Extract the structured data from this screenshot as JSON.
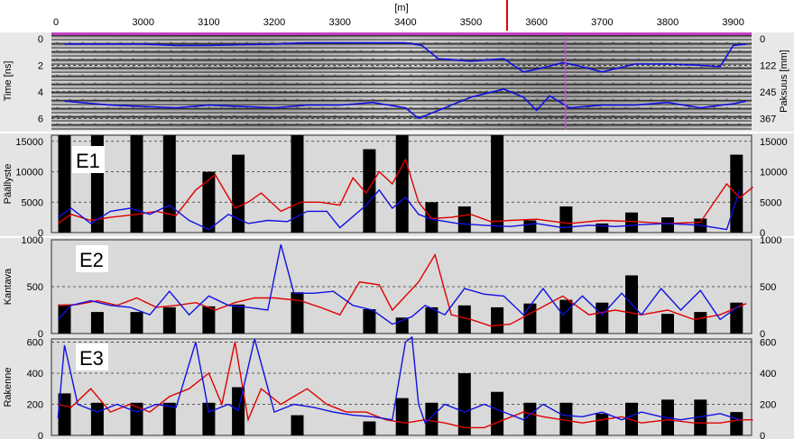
{
  "chart_data": [
    {
      "type": "heatmap",
      "panel": "radargram",
      "xlabel": "[m]",
      "ylabel": "Time [ns]",
      "ylabel_right": "Paksuus [mm]",
      "x_ticks": [
        0,
        3000,
        3100,
        3200,
        3300,
        3400,
        3500,
        3600,
        3700,
        3800,
        3900
      ],
      "y_ticks": [
        0,
        2,
        4,
        6
      ],
      "y_ticks_right": [
        0,
        122,
        245,
        367
      ],
      "ylim": [
        0,
        7.2
      ],
      "cursor_x": 3555,
      "marker_x": 3644,
      "series": [
        {
          "name": "",
          "color": "#1010e0",
          "x": [
            2880,
            2950,
            3000,
            3050,
            3100,
            3150,
            3200,
            3250,
            3300,
            3350,
            3400,
            3425,
            3450,
            3500,
            3550,
            3580,
            3600,
            3640,
            3660,
            3700,
            3750,
            3800,
            3850,
            3880,
            3900,
            3920
          ],
          "y": [
            0.4,
            0.4,
            0.4,
            0.5,
            0.5,
            0.45,
            0.4,
            0.3,
            0.3,
            0.3,
            0.3,
            0.5,
            1.5,
            1.7,
            1.5,
            2.5,
            2.3,
            1.8,
            2.0,
            2.5,
            1.9,
            1.9,
            2.0,
            2.1,
            0.5,
            0.4
          ]
        },
        {
          "name": "",
          "color": "#1010e0",
          "x": [
            2880,
            2950,
            3000,
            3050,
            3100,
            3150,
            3200,
            3250,
            3300,
            3350,
            3400,
            3420,
            3450,
            3500,
            3550,
            3580,
            3600,
            3620,
            3650,
            3700,
            3750,
            3800,
            3850,
            3900,
            3920
          ],
          "y": [
            4.7,
            5.0,
            5.1,
            5.2,
            5.0,
            5.1,
            5.2,
            5.0,
            5.0,
            4.8,
            5.2,
            6.0,
            5.4,
            4.4,
            3.8,
            4.4,
            5.4,
            4.3,
            5.2,
            5.0,
            5.0,
            4.8,
            5.2,
            4.9,
            4.7
          ]
        }
      ]
    },
    {
      "type": "bar",
      "panel": "E1",
      "panel_label": "E1",
      "ylabel": "Päällyste",
      "ylim": [
        0,
        16000
      ],
      "y_ticks": [
        0,
        5000,
        10000,
        15000
      ],
      "bars": {
        "x": [
          2880,
          2930,
          2990,
          3040,
          3100,
          3145,
          3235,
          3345,
          3395,
          3440,
          3490,
          3540,
          3590,
          3645,
          3700,
          3745,
          3800,
          3850,
          3905
        ],
        "values": [
          16000,
          16000,
          16000,
          16000,
          10000,
          12800,
          16000,
          13700,
          16000,
          5000,
          4300,
          16000,
          2000,
          4300,
          1500,
          3300,
          2500,
          2300,
          12800
        ]
      },
      "series": [
        {
          "name": "",
          "color": "#e00000",
          "x": [
            2870,
            2890,
            2920,
            2950,
            2990,
            3020,
            3050,
            3080,
            3110,
            3140,
            3160,
            3180,
            3210,
            3240,
            3270,
            3300,
            3320,
            3340,
            3360,
            3380,
            3400,
            3420,
            3440,
            3470,
            3500,
            3530,
            3560,
            3600,
            3650,
            3700,
            3750,
            3800,
            3850,
            3890,
            3910,
            3930
          ],
          "y": [
            1500,
            3000,
            2000,
            2500,
            3000,
            3500,
            2800,
            7000,
            9500,
            4000,
            5000,
            6500,
            3500,
            5000,
            5000,
            4500,
            9000,
            6500,
            10000,
            8000,
            12000,
            5000,
            2300,
            2500,
            3000,
            1800,
            2000,
            2200,
            1500,
            2000,
            1800,
            1500,
            1700,
            8000,
            5700,
            7500
          ]
        },
        {
          "name": "",
          "color": "#1010e0",
          "x": [
            2870,
            2890,
            2920,
            2950,
            2980,
            3010,
            3040,
            3070,
            3100,
            3130,
            3160,
            3190,
            3220,
            3250,
            3280,
            3300,
            3340,
            3360,
            3380,
            3400,
            3420,
            3440,
            3480,
            3520,
            3560,
            3600,
            3640,
            3680,
            3720,
            3760,
            3800,
            3850,
            3890,
            3910
          ],
          "y": [
            2500,
            4000,
            1500,
            3500,
            4000,
            3000,
            4500,
            2000,
            500,
            3000,
            1500,
            2000,
            1800,
            3500,
            3500,
            800,
            4500,
            7000,
            4000,
            5800,
            3000,
            2200,
            1500,
            1200,
            1000,
            1500,
            800,
            1200,
            1000,
            1300,
            1500,
            1200,
            500,
            7000
          ]
        }
      ]
    },
    {
      "type": "bar",
      "panel": "E2",
      "panel_label": "E2",
      "ylabel": "Kantava",
      "ylim": [
        0,
        1000
      ],
      "y_ticks": [
        0,
        500,
        1000
      ],
      "bars": {
        "x": [
          2880,
          2930,
          2990,
          3040,
          3100,
          3145,
          3235,
          3345,
          3395,
          3440,
          3490,
          3540,
          3590,
          3645,
          3700,
          3745,
          3800,
          3850,
          3905
        ],
        "values": [
          310,
          230,
          230,
          280,
          290,
          310,
          440,
          260,
          170,
          280,
          300,
          280,
          320,
          360,
          330,
          620,
          210,
          230,
          330
        ]
      },
      "series": [
        {
          "name": "",
          "color": "#e00000",
          "x": [
            2870,
            2900,
            2930,
            2960,
            2990,
            3020,
            3050,
            3080,
            3110,
            3140,
            3170,
            3200,
            3240,
            3270,
            3300,
            3330,
            3360,
            3380,
            3400,
            3420,
            3445,
            3470,
            3500,
            3530,
            3560,
            3600,
            3640,
            3680,
            3720,
            3760,
            3800,
            3840,
            3880,
            3920
          ],
          "y": [
            300,
            310,
            350,
            300,
            380,
            280,
            300,
            330,
            250,
            330,
            380,
            380,
            350,
            280,
            200,
            550,
            520,
            250,
            400,
            550,
            840,
            200,
            150,
            80,
            100,
            250,
            400,
            200,
            250,
            200,
            250,
            150,
            200,
            320
          ]
        },
        {
          "name": "",
          "color": "#1010e0",
          "x": [
            2870,
            2890,
            2920,
            2950,
            2980,
            3010,
            3040,
            3070,
            3100,
            3130,
            3160,
            3190,
            3210,
            3230,
            3260,
            3290,
            3320,
            3350,
            3380,
            3410,
            3430,
            3460,
            3490,
            3520,
            3550,
            3580,
            3610,
            3640,
            3670,
            3700,
            3730,
            3760,
            3790,
            3820,
            3850,
            3880,
            3910
          ],
          "y": [
            150,
            300,
            350,
            300,
            280,
            200,
            450,
            200,
            400,
            300,
            280,
            250,
            950,
            430,
            430,
            450,
            300,
            250,
            100,
            180,
            300,
            200,
            480,
            420,
            400,
            200,
            480,
            200,
            400,
            200,
            430,
            200,
            480,
            250,
            460,
            150,
            300
          ]
        }
      ]
    },
    {
      "type": "bar",
      "panel": "E3",
      "panel_label": "E3",
      "ylabel": "Rakenne",
      "ylim": [
        0,
        620
      ],
      "y_ticks": [
        0,
        200,
        400,
        600
      ],
      "bars": {
        "x": [
          2880,
          2930,
          2990,
          3040,
          3100,
          3145,
          3235,
          3345,
          3395,
          3440,
          3490,
          3540,
          3590,
          3645,
          3700,
          3745,
          3800,
          3850,
          3905
        ],
        "values": [
          270,
          210,
          210,
          210,
          210,
          310,
          130,
          90,
          240,
          210,
          400,
          280,
          210,
          210,
          140,
          210,
          230,
          230,
          150
        ]
      },
      "series": [
        {
          "name": "",
          "color": "#e00000",
          "x": [
            2870,
            2890,
            2920,
            2950,
            2980,
            3010,
            3040,
            3070,
            3100,
            3120,
            3140,
            3160,
            3180,
            3210,
            3250,
            3280,
            3310,
            3340,
            3370,
            3400,
            3430,
            3460,
            3490,
            3520,
            3550,
            3580,
            3610,
            3640,
            3670,
            3700,
            3730,
            3760,
            3800,
            3840,
            3880,
            3910,
            3930
          ],
          "y": [
            200,
            180,
            300,
            150,
            200,
            150,
            250,
            300,
            400,
            200,
            600,
            100,
            300,
            200,
            300,
            200,
            150,
            150,
            100,
            80,
            100,
            80,
            50,
            50,
            100,
            150,
            120,
            100,
            80,
            100,
            120,
            80,
            100,
            80,
            80,
            100,
            100
          ]
        },
        {
          "name": "",
          "color": "#1010e0",
          "x": [
            2870,
            2880,
            2900,
            2930,
            2960,
            2990,
            3020,
            3050,
            3080,
            3100,
            3130,
            3145,
            3170,
            3200,
            3230,
            3260,
            3290,
            3320,
            3350,
            3380,
            3400,
            3410,
            3420,
            3430,
            3460,
            3490,
            3520,
            3550,
            3580,
            3610,
            3640,
            3670,
            3700,
            3730,
            3760,
            3790,
            3820,
            3850,
            3880,
            3910
          ],
          "y": [
            110,
            580,
            200,
            150,
            200,
            150,
            200,
            180,
            600,
            150,
            200,
            160,
            620,
            150,
            200,
            180,
            150,
            130,
            120,
            100,
            600,
            640,
            200,
            80,
            200,
            150,
            200,
            150,
            100,
            200,
            130,
            120,
            150,
            100,
            150,
            120,
            100,
            120,
            140,
            100
          ]
        }
      ]
    }
  ]
}
